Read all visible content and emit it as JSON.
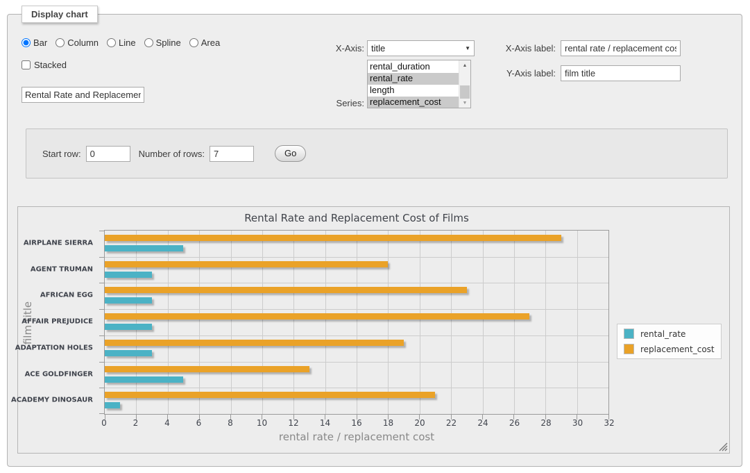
{
  "fieldset": {
    "legend": "Display chart"
  },
  "controls": {
    "chart_types": [
      {
        "label": "Bar",
        "checked": true
      },
      {
        "label": "Column",
        "checked": false
      },
      {
        "label": "Line",
        "checked": false
      },
      {
        "label": "Spline",
        "checked": false
      },
      {
        "label": "Area",
        "checked": false
      }
    ],
    "stacked_label": "Stacked",
    "title_value": "Rental Rate and Replacement Cost of Films",
    "x_axis": {
      "label": "X-Axis:",
      "selected": "title"
    },
    "series": {
      "label": "Series:",
      "options": [
        {
          "label": "rental_duration",
          "selected": false
        },
        {
          "label": "rental_rate",
          "selected": true
        },
        {
          "label": "length",
          "selected": false
        },
        {
          "label": "replacement_cost",
          "selected": true
        }
      ]
    },
    "x_axis_label": {
      "label": "X-Axis label:",
      "value": "rental rate / replacement cost"
    },
    "y_axis_label": {
      "label": "Y-Axis label:",
      "value": "film title"
    }
  },
  "pagination": {
    "start_row_label": "Start row:",
    "start_row_value": "0",
    "num_rows_label": "Number of rows:",
    "num_rows_value": "7",
    "go_label": "Go"
  },
  "chart_data": {
    "type": "bar",
    "orientation": "horizontal",
    "title": "Rental Rate and Replacement Cost of Films",
    "xlabel": "rental rate / replacement cost",
    "ylabel": "film title",
    "categories": [
      "AIRPLANE SIERRA",
      "AGENT TRUMAN",
      "AFRICAN EGG",
      "AFFAIR PREJUDICE",
      "ADAPTATION HOLES",
      "ACE GOLDFINGER",
      "ACADEMY DINOSAUR"
    ],
    "series": [
      {
        "name": "rental_rate",
        "color": "#4bb2c5",
        "values": [
          4.99,
          2.99,
          2.99,
          2.99,
          2.99,
          4.99,
          0.99
        ]
      },
      {
        "name": "replacement_cost",
        "color": "#eaa228",
        "values": [
          28.99,
          17.99,
          22.99,
          26.99,
          18.99,
          12.99,
          20.99
        ]
      }
    ],
    "xlim": [
      0,
      32
    ],
    "xticks": [
      0,
      2,
      4,
      6,
      8,
      10,
      12,
      14,
      16,
      18,
      20,
      22,
      24,
      26,
      28,
      30,
      32
    ],
    "grid": true,
    "legend_position": "right"
  }
}
